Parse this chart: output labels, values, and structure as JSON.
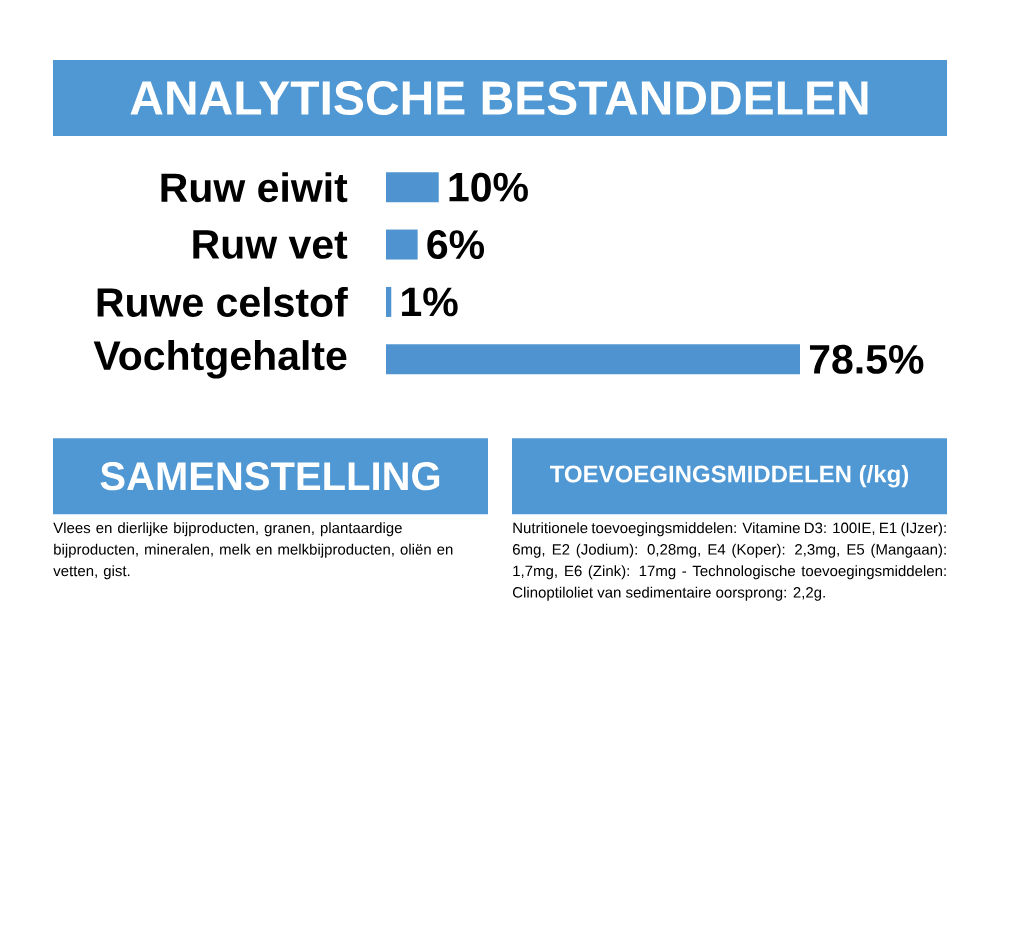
{
  "chart_data": [
    {
      "type": "bar",
      "orientation": "horizontal",
      "title": "ANALYTISCHE BESTANDDELEN",
      "categories": [
        "Ruw eiwit",
        "Ruw vet",
        "Ruwe celstof",
        "Vochtgehalte"
      ],
      "values": [
        10,
        6,
        1,
        78.5
      ],
      "value_labels": [
        "10%",
        "6%",
        "1%",
        "78.5%"
      ],
      "color": "#4f94d0"
    },
    {
      "type": "other",
      "title": "SAMENSTELLING",
      "annotations": [
        "Vlees en dierlijke bijproducten, granen, plantaardige bijproducten, mineralen, melk en melkbijproducten, oliën en vetten, gist."
      ]
    },
    {
      "type": "other",
      "title": "TOEVOEGINGSMIDDELEN (/kg)",
      "annotations": [
        "Nutritionele toevoegingsmiddelen: Vitamine D3: 100IE, E1 (IJzer): 6mg, E2 (Jodium): 0,28mg, E4 (Koper): 2,3mg, E5 (Mangaan): 1,7mg, E6 (Zink): 17mg - Technologische toevoegingsmiddelen: Clinoptiloliet van sedimentaire oorsprong: 2,2g."
      ]
    }
  ]
}
